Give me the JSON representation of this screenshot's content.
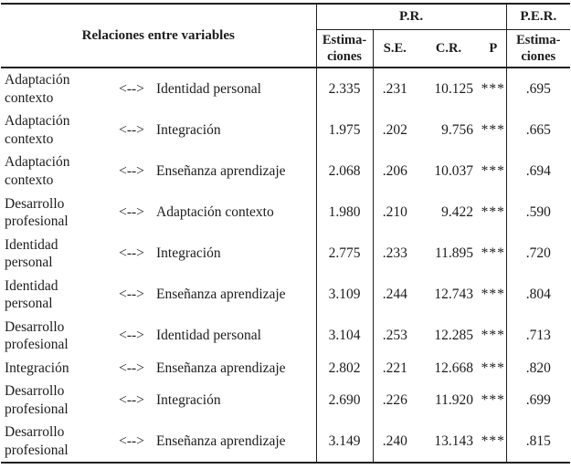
{
  "table": {
    "header": {
      "relations_label": "Relaciones entre variables",
      "pr_label": "P.R.",
      "per_label": "P.E.R.",
      "pr_estimaciones_label": "Estima-\nciones",
      "se_label": "S.E.",
      "cr_label": "C.R.",
      "p_label": "P",
      "per_estimaciones_label": "Estima-\nciones"
    },
    "rows": [
      {
        "var1": "Adaptación contexto",
        "arrow": "<-->",
        "var2": "Identidad personal",
        "estimate": "2.335",
        "se": ".231",
        "cr": "10.125",
        "p": "***",
        "per_estimate": ".695"
      },
      {
        "var1": "Adaptación contexto",
        "arrow": "<-->",
        "var2": "Integración",
        "estimate": "1.975",
        "se": ".202",
        "cr": "9.756",
        "p": "***",
        "per_estimate": ".665"
      },
      {
        "var1": "Adaptación contexto",
        "arrow": "<-->",
        "var2": "Enseñanza aprendizaje",
        "estimate": "2.068",
        "se": ".206",
        "cr": "10.037",
        "p": "***",
        "per_estimate": ".694"
      },
      {
        "var1": "Desarrollo profesional",
        "arrow": "<-->",
        "var2": "Adaptación contexto",
        "estimate": "1.980",
        "se": ".210",
        "cr": "9.422",
        "p": "***",
        "per_estimate": ".590"
      },
      {
        "var1": "Identidad personal",
        "arrow": "<-->",
        "var2": "Integración",
        "estimate": "2.775",
        "se": ".233",
        "cr": "11.895",
        "p": "***",
        "per_estimate": ".720"
      },
      {
        "var1": "Identidad personal",
        "arrow": "<-->",
        "var2": "Enseñanza aprendizaje",
        "estimate": "3.109",
        "se": ".244",
        "cr": "12.743",
        "p": "***",
        "per_estimate": ".804"
      },
      {
        "var1": "Desarrollo profesional",
        "arrow": "<-->",
        "var2": "Identidad personal",
        "estimate": "3.104",
        "se": ".253",
        "cr": "12.285",
        "p": "***",
        "per_estimate": ".713"
      },
      {
        "var1": "Integración",
        "arrow": "<-->",
        "var2": "Enseñanza aprendizaje",
        "estimate": "2.802",
        "se": ".221",
        "cr": "12.668",
        "p": "***",
        "per_estimate": ".820"
      },
      {
        "var1": "Desarrollo profesional",
        "arrow": "<-->",
        "var2": "Integración",
        "estimate": "2.690",
        "se": ".226",
        "cr": "11.920",
        "p": "***",
        "per_estimate": ".699"
      },
      {
        "var1": "Desarrollo profesional",
        "arrow": "<-->",
        "var2": "Enseñanza aprendizaje",
        "estimate": "3.149",
        "se": ".240",
        "cr": "13.143",
        "p": "***",
        "per_estimate": ".815"
      }
    ]
  }
}
